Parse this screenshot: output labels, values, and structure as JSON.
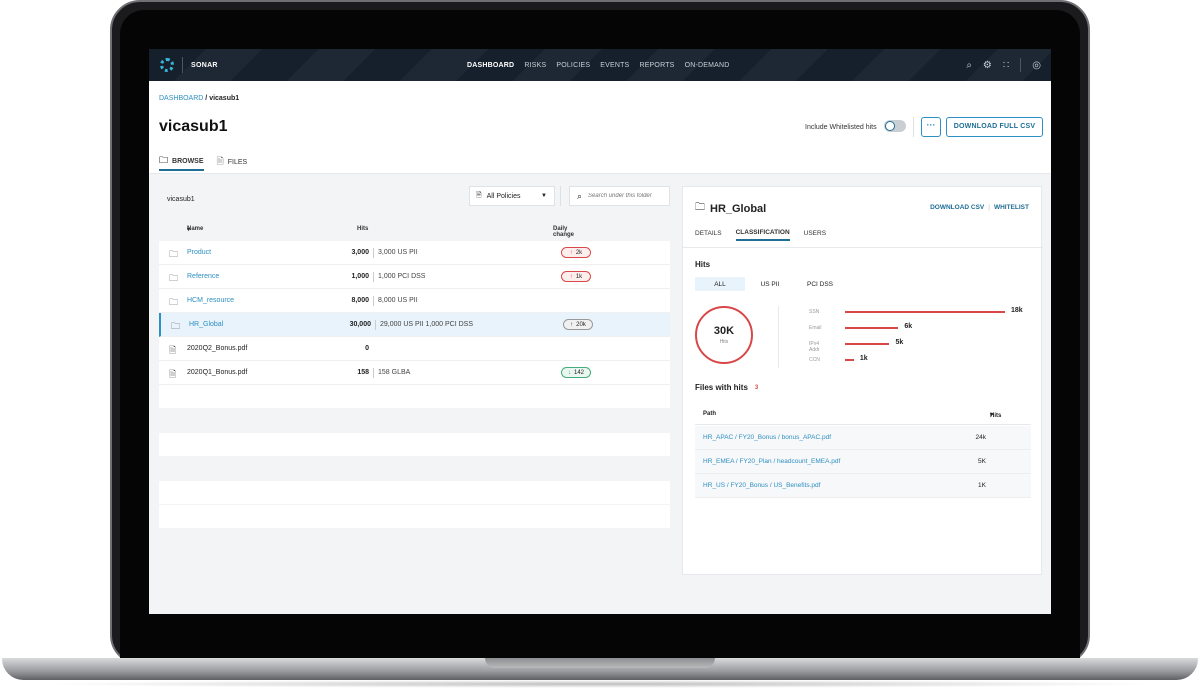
{
  "app": {
    "name": "SONAR"
  },
  "nav": [
    "DASHBOARD",
    "RISKS",
    "POLICIES",
    "EVENTS",
    "REPORTS",
    "ON-DEMAND"
  ],
  "nav_active": "DASHBOARD",
  "breadcrumb": {
    "root": "DASHBOARD",
    "current": "vicasub1"
  },
  "page": {
    "title": "vicasub1",
    "whitelist_label": "Include Whitelisted hits",
    "more_label": "···",
    "download_full_csv": "DOWNLOAD FULL CSV",
    "tabs": [
      "BROWSE",
      "FILES"
    ]
  },
  "browser": {
    "folder": "vicasub1",
    "policy_select": "All Policies",
    "search_placeholder": "Search under this folder",
    "columns": {
      "name": "Name",
      "hits": "Hits",
      "daily_change": "Daily change"
    },
    "rows": [
      {
        "type": "folder",
        "name": "Product",
        "hits": "3,000",
        "detail": "3,000 US PII",
        "change": "2k",
        "dir": "up"
      },
      {
        "type": "folder",
        "name": "Reference",
        "hits": "1,000",
        "detail": "1,000 PCI DSS",
        "change": "1k",
        "dir": "up"
      },
      {
        "type": "folder",
        "name": "HCM_resource",
        "hits": "8,000",
        "detail": "8,000 US PII",
        "change": "",
        "dir": ""
      },
      {
        "type": "folder",
        "name": "HR_Global",
        "hits": "30,000",
        "detail": "29,000 US PII  1,000 PCI DSS",
        "change": "20k",
        "dir": "flat"
      },
      {
        "type": "file",
        "name": "2020Q2_Bonus.pdf",
        "hits": "0",
        "detail": "",
        "change": "",
        "dir": ""
      },
      {
        "type": "file",
        "name": "2020Q1_Bonus.pdf",
        "hits": "158",
        "detail": "158 GLBA",
        "change": "142",
        "dir": "down"
      }
    ]
  },
  "detail": {
    "title": "HR_Global",
    "download_csv": "DOWNLOAD CSV",
    "whitelist": "WHITELIST",
    "tabs": [
      "DETAILS",
      "CLASSIFICATION",
      "USERS"
    ],
    "hits_heading": "Hits",
    "class_tabs": [
      "ALL",
      "US PII",
      "PCI DSS"
    ],
    "total": "30K",
    "total_label": "Hits",
    "breakdown": [
      {
        "label": "SSN",
        "value": 18000,
        "display": "18k"
      },
      {
        "label": "Email",
        "value": 6000,
        "display": "6k"
      },
      {
        "label": "IPv4 Addr",
        "value": 5000,
        "display": "5k"
      },
      {
        "label": "CCN",
        "value": 1000,
        "display": "1k"
      }
    ],
    "files_heading": "Files with hits",
    "files_count": "3",
    "files_columns": {
      "path": "Path",
      "hits": "Hits"
    },
    "files": [
      {
        "path": "HR_APAC / FY20_Bonus / bonus_APAC.pdf",
        "hits": "24k"
      },
      {
        "path": "HR_EMEA / FY20_Plan / headcount_EMEA.pdf",
        "hits": "5K"
      },
      {
        "path": "HR_US / FY20_Bonus / US_Benefits.pdf",
        "hits": "1K"
      }
    ]
  },
  "colors": {
    "accent": "#2d8fc2",
    "danger": "#d94848",
    "success": "#42ad7a",
    "topbar": "#16202d"
  }
}
